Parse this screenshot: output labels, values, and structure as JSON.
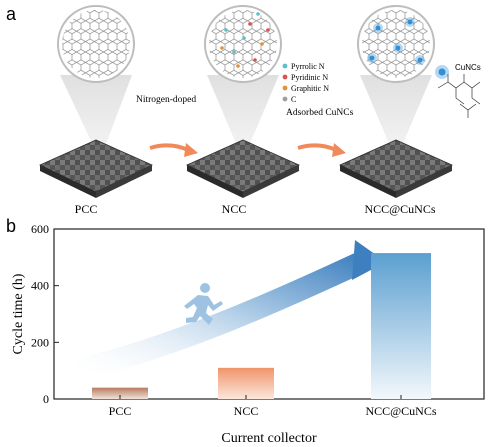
{
  "panel_a": {
    "label": "a",
    "stages": [
      {
        "name": "PCC"
      },
      {
        "name": "NCC"
      },
      {
        "name": "NCC@CuNCs"
      }
    ],
    "arrows": [
      {
        "label": "Nitrogen-doped"
      },
      {
        "label": "Adsorbed CuNCs"
      }
    ],
    "legend": {
      "items": [
        {
          "label": "Pyrrolic N",
          "color": "#5bc0c8"
        },
        {
          "label": "Pyridinic N",
          "color": "#d9534f"
        },
        {
          "label": "Graphitic N",
          "color": "#e0913a"
        },
        {
          "label": "C",
          "color": "#9e9e9e"
        }
      ]
    },
    "cunc_label": "CuNCs",
    "colors": {
      "cloth": "#5a5a5a",
      "cunc": "#2f8fd8",
      "arrow": "#f08a5a"
    }
  },
  "panel_b": {
    "label": "b",
    "chart_data": {
      "type": "bar",
      "categories": [
        "PCC",
        "NCC",
        "NCC@CuNCs"
      ],
      "values": [
        40,
        110,
        515
      ],
      "xlabel": "Current collector",
      "ylabel": "Cycle time (h)",
      "ylim": [
        0,
        600
      ],
      "yticks": [
        0,
        200,
        400,
        600
      ],
      "colors": [
        "#c98a6a",
        "#f2a27a",
        "#6aa7d3"
      ]
    }
  }
}
